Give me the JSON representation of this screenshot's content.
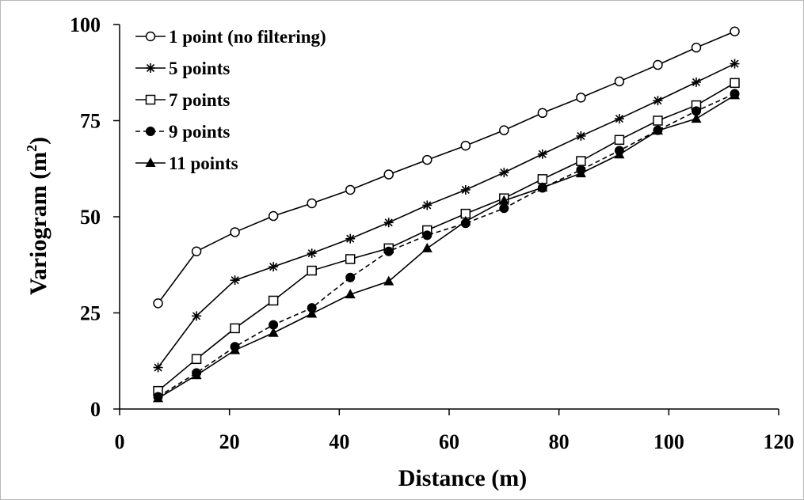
{
  "chart_data": {
    "type": "line",
    "xlabel": "Distance (m)",
    "ylabel": "Variogram (m",
    "ylabel_sup": "2",
    "ylabel_close": ")",
    "xlim": [
      0,
      120
    ],
    "ylim": [
      0,
      100
    ],
    "xticks": [
      0,
      20,
      40,
      60,
      80,
      100,
      120
    ],
    "yticks": [
      0,
      25,
      50,
      75,
      100
    ],
    "grid": false,
    "legend_position": "top-left",
    "x": [
      7,
      14,
      21,
      28,
      35,
      42,
      49,
      56,
      63,
      70,
      77,
      84,
      91,
      98,
      105,
      112
    ],
    "series": [
      {
        "name": "1 point (no filtering)",
        "marker": "circle-open",
        "dash": "solid",
        "values": [
          27.5,
          41,
          46,
          50.2,
          53.5,
          57,
          61,
          64.8,
          68.5,
          72.5,
          77,
          81,
          85.2,
          89.5,
          94,
          98.2
        ]
      },
      {
        "name": "5 points",
        "marker": "star",
        "dash": "solid",
        "values": [
          10.8,
          24.2,
          33.5,
          37,
          40.5,
          44.3,
          48.5,
          53,
          57,
          61.5,
          66.3,
          71,
          75.5,
          80.2,
          85,
          89.8
        ]
      },
      {
        "name": "7 points",
        "marker": "square-open",
        "dash": "solid",
        "values": [
          4.7,
          13,
          21,
          28.2,
          36,
          39,
          41.8,
          46.5,
          50.8,
          54.8,
          59.8,
          64.5,
          70,
          75,
          79,
          84.8
        ]
      },
      {
        "name": "9 points",
        "marker": "circle-filled",
        "dash": "dashed",
        "values": [
          3.2,
          9.4,
          16.2,
          21.9,
          26.3,
          34.2,
          41,
          45.2,
          48.3,
          52.2,
          57.5,
          62.2,
          67.2,
          72.5,
          77.5,
          82
        ]
      },
      {
        "name": "11 points",
        "marker": "triangle-filled",
        "dash": "solid",
        "values": [
          2.8,
          8.8,
          15.3,
          19.8,
          24.8,
          29.8,
          33.2,
          41.8,
          48.8,
          54.2,
          57.6,
          61.3,
          66.2,
          72.4,
          75.5,
          81.6
        ]
      }
    ]
  }
}
